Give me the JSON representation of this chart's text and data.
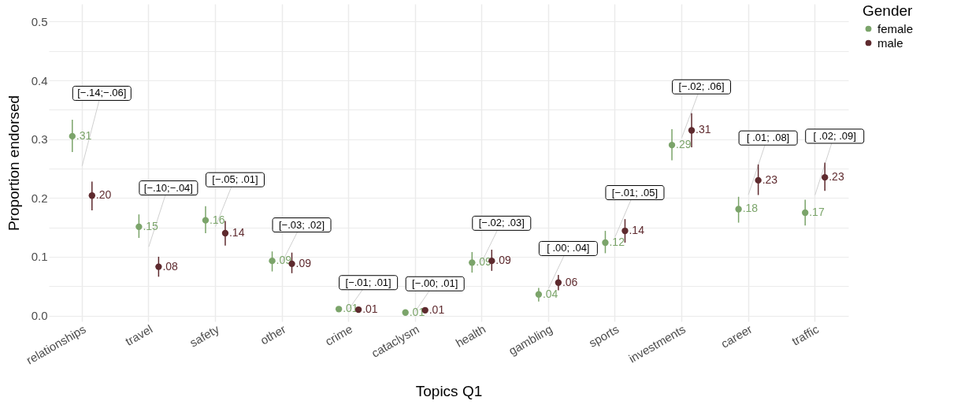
{
  "chart_data": {
    "type": "scatter",
    "xlabel": "Topics Q1",
    "ylabel": "Proportion endorsed",
    "legend_title": "Gender",
    "legend": "right",
    "grid": true,
    "marker": "circle",
    "categories": [
      "relationships",
      "travel",
      "safety",
      "other",
      "crime",
      "cataclysm",
      "health",
      "gambling",
      "sports",
      "investments",
      "career",
      "traffic"
    ],
    "ylim": [
      -0.01,
      0.53
    ],
    "yticks": [
      {
        "value": 0,
        "label": "0.0"
      },
      {
        "value": 0.05,
        "label": null
      },
      {
        "value": 0.1,
        "label": "0.1"
      },
      {
        "value": 0.15,
        "label": null
      },
      {
        "value": 0.2,
        "label": "0.2"
      },
      {
        "value": 0.25,
        "label": null
      },
      {
        "value": 0.3,
        "label": "0.3"
      },
      {
        "value": 0.35,
        "label": null
      },
      {
        "value": 0.4,
        "label": "0.4"
      },
      {
        "value": 0.45,
        "label": null
      },
      {
        "value": 0.5,
        "label": "0.5"
      }
    ],
    "series": [
      {
        "name": "female",
        "color": "#7ba46a",
        "values": [
          0.305,
          0.151,
          0.162,
          0.093,
          0.011,
          0.005,
          0.09,
          0.036,
          0.124,
          0.29,
          0.181,
          0.175
        ],
        "errors": [
          [
            0.278,
            0.333
          ],
          [
            0.132,
            0.172
          ],
          [
            0.14,
            0.186
          ],
          [
            0.075,
            0.109
          ],
          null,
          null,
          [
            0.073,
            0.108
          ],
          [
            0.024,
            0.047
          ],
          [
            0.106,
            0.144
          ],
          [
            0.264,
            0.317
          ],
          [
            0.158,
            0.202
          ],
          [
            0.153,
            0.197
          ]
        ],
        "value_labels": [
          ".31",
          ".15",
          ".16",
          ".09",
          ".01",
          ".01",
          ".09",
          ".04",
          ".12",
          ".29",
          ".18",
          ".17"
        ]
      },
      {
        "name": "male",
        "color": "#5e2a2e",
        "values": [
          0.204,
          0.083,
          0.14,
          0.088,
          0.01,
          0.009,
          0.093,
          0.056,
          0.144,
          0.315,
          0.23,
          0.235
        ],
        "errors": [
          [
            0.179,
            0.228
          ],
          [
            0.066,
            0.1
          ],
          [
            0.119,
            0.161
          ],
          [
            0.072,
            0.107
          ],
          null,
          null,
          [
            0.076,
            0.112
          ],
          [
            0.043,
            0.069
          ],
          [
            0.124,
            0.164
          ],
          [
            0.286,
            0.344
          ],
          [
            0.205,
            0.257
          ],
          [
            0.212,
            0.26
          ]
        ],
        "value_labels": [
          ".20",
          ".08",
          ".14",
          ".09",
          ".01",
          ".01",
          ".09",
          ".06",
          ".14",
          ".31",
          ".23",
          ".23"
        ]
      }
    ],
    "annotations": [
      "[−.14;−.06]",
      "[−.10;−.04]",
      "[−.05; .01]",
      "[−.03; .02]",
      "[−.01; .01]",
      "[−.00; .01]",
      "[−.02; .03]",
      "[ .00; .04]",
      "[−.01; .05]",
      "[−.02; .06]",
      "[ .01; .08]",
      "[ .02; .09]"
    ]
  }
}
